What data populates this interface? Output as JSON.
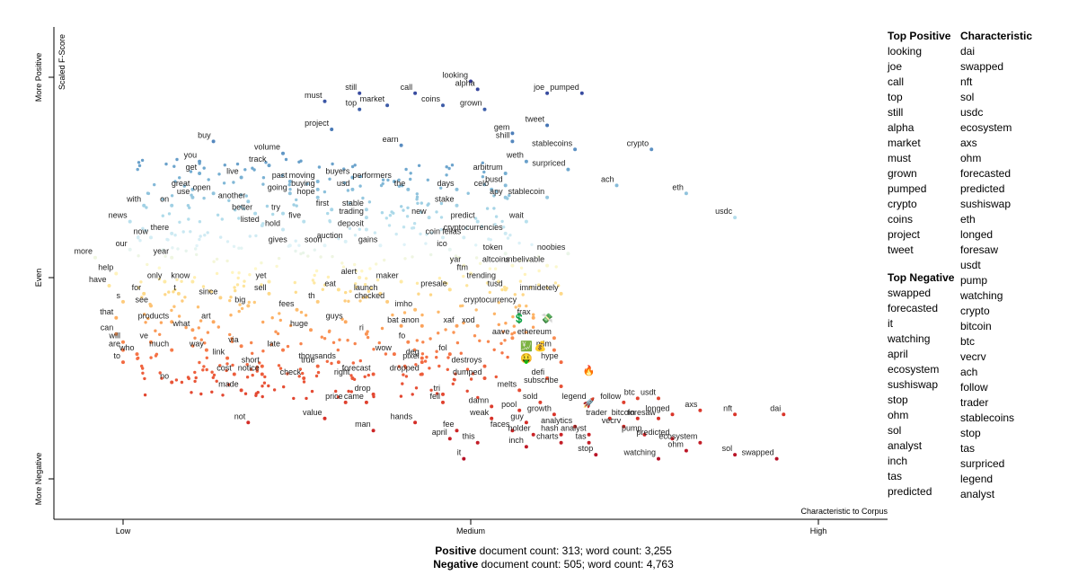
{
  "chart_data": {
    "type": "scatter",
    "x_axis": {
      "label": "Characteristic to Corpus",
      "ticks": [
        "Low",
        "Medium",
        "High"
      ],
      "range": [
        0,
        1
      ]
    },
    "y_axis": {
      "label": "Scaled F-Score",
      "ticks": [
        "More Negative",
        "Even",
        "More Positive"
      ],
      "range": [
        -1,
        1
      ]
    },
    "colors": {
      "positive": "#3a53a4",
      "neutral": "#fdf5c0",
      "negative": "#c2242f"
    },
    "labeled_terms": [
      {
        "term": "looking",
        "x": 0.5,
        "y": 0.99
      },
      {
        "term": "alpha",
        "x": 0.51,
        "y": 0.97
      },
      {
        "term": "call",
        "x": 0.42,
        "y": 0.96
      },
      {
        "term": "still",
        "x": 0.34,
        "y": 0.96
      },
      {
        "term": "must",
        "x": 0.29,
        "y": 0.94
      },
      {
        "term": "market",
        "x": 0.38,
        "y": 0.93
      },
      {
        "term": "coins",
        "x": 0.46,
        "y": 0.93
      },
      {
        "term": "top",
        "x": 0.34,
        "y": 0.92
      },
      {
        "term": "grown",
        "x": 0.52,
        "y": 0.92
      },
      {
        "term": "joe",
        "x": 0.61,
        "y": 0.96
      },
      {
        "term": "pumped",
        "x": 0.66,
        "y": 0.96
      },
      {
        "term": "project",
        "x": 0.3,
        "y": 0.87
      },
      {
        "term": "tweet",
        "x": 0.61,
        "y": 0.88
      },
      {
        "term": "gem",
        "x": 0.56,
        "y": 0.86
      },
      {
        "term": "shill",
        "x": 0.56,
        "y": 0.84
      },
      {
        "term": "crypto",
        "x": 0.76,
        "y": 0.82
      },
      {
        "term": "stablecoins",
        "x": 0.65,
        "y": 0.82
      },
      {
        "term": "earn",
        "x": 0.4,
        "y": 0.83
      },
      {
        "term": "buy",
        "x": 0.13,
        "y": 0.84
      },
      {
        "term": "volume",
        "x": 0.23,
        "y": 0.81
      },
      {
        "term": "track",
        "x": 0.21,
        "y": 0.78
      },
      {
        "term": "weth",
        "x": 0.58,
        "y": 0.79
      },
      {
        "term": "you",
        "x": 0.11,
        "y": 0.79
      },
      {
        "term": "surpriced",
        "x": 0.64,
        "y": 0.77
      },
      {
        "term": "arbitrum",
        "x": 0.55,
        "y": 0.76
      },
      {
        "term": "get",
        "x": 0.11,
        "y": 0.76
      },
      {
        "term": "live",
        "x": 0.17,
        "y": 0.75
      },
      {
        "term": "past",
        "x": 0.24,
        "y": 0.74
      },
      {
        "term": "moving",
        "x": 0.28,
        "y": 0.74
      },
      {
        "term": "buyers",
        "x": 0.33,
        "y": 0.75
      },
      {
        "term": "performers",
        "x": 0.39,
        "y": 0.74
      },
      {
        "term": "busd",
        "x": 0.55,
        "y": 0.73
      },
      {
        "term": "ach",
        "x": 0.71,
        "y": 0.73
      },
      {
        "term": "days",
        "x": 0.48,
        "y": 0.72
      },
      {
        "term": "great",
        "x": 0.1,
        "y": 0.72
      },
      {
        "term": "open",
        "x": 0.13,
        "y": 0.71
      },
      {
        "term": "buying",
        "x": 0.28,
        "y": 0.72
      },
      {
        "term": "usd",
        "x": 0.33,
        "y": 0.72
      },
      {
        "term": "the",
        "x": 0.41,
        "y": 0.72
      },
      {
        "term": "celo",
        "x": 0.53,
        "y": 0.72
      },
      {
        "term": "apy",
        "x": 0.55,
        "y": 0.7
      },
      {
        "term": "eth",
        "x": 0.81,
        "y": 0.71
      },
      {
        "term": "use",
        "x": 0.1,
        "y": 0.7
      },
      {
        "term": "going",
        "x": 0.24,
        "y": 0.71
      },
      {
        "term": "hope",
        "x": 0.28,
        "y": 0.7
      },
      {
        "term": "stablecoin",
        "x": 0.61,
        "y": 0.7
      },
      {
        "term": "another",
        "x": 0.18,
        "y": 0.69
      },
      {
        "term": "stake",
        "x": 0.48,
        "y": 0.68
      },
      {
        "term": "with",
        "x": 0.03,
        "y": 0.68
      },
      {
        "term": "on",
        "x": 0.07,
        "y": 0.68
      },
      {
        "term": "first",
        "x": 0.3,
        "y": 0.67
      },
      {
        "term": "stable",
        "x": 0.35,
        "y": 0.67
      },
      {
        "term": "better",
        "x": 0.19,
        "y": 0.66
      },
      {
        "term": "try",
        "x": 0.23,
        "y": 0.66
      },
      {
        "term": "five",
        "x": 0.26,
        "y": 0.64
      },
      {
        "term": "trading",
        "x": 0.35,
        "y": 0.65
      },
      {
        "term": "new",
        "x": 0.44,
        "y": 0.65
      },
      {
        "term": "predict",
        "x": 0.51,
        "y": 0.64
      },
      {
        "term": "wait",
        "x": 0.58,
        "y": 0.64
      },
      {
        "term": "usdc",
        "x": 0.88,
        "y": 0.65
      },
      {
        "term": "news",
        "x": 0.01,
        "y": 0.64
      },
      {
        "term": "listed",
        "x": 0.2,
        "y": 0.63
      },
      {
        "term": "hold",
        "x": 0.23,
        "y": 0.62
      },
      {
        "term": "deposit",
        "x": 0.35,
        "y": 0.62
      },
      {
        "term": "cryptocurrencies",
        "x": 0.55,
        "y": 0.61
      },
      {
        "term": "now",
        "x": 0.04,
        "y": 0.6
      },
      {
        "term": "there",
        "x": 0.07,
        "y": 0.61
      },
      {
        "term": "coin",
        "x": 0.46,
        "y": 0.6
      },
      {
        "term": "fellas",
        "x": 0.49,
        "y": 0.6
      },
      {
        "term": "auction",
        "x": 0.32,
        "y": 0.59
      },
      {
        "term": "gains",
        "x": 0.37,
        "y": 0.58
      },
      {
        "term": "gives",
        "x": 0.24,
        "y": 0.58
      },
      {
        "term": "soon",
        "x": 0.29,
        "y": 0.58
      },
      {
        "term": "ico",
        "x": 0.47,
        "y": 0.57
      },
      {
        "term": "token",
        "x": 0.55,
        "y": 0.56
      },
      {
        "term": "noobies",
        "x": 0.64,
        "y": 0.56
      },
      {
        "term": "our",
        "x": 0.01,
        "y": 0.57
      },
      {
        "term": "more",
        "x": -0.04,
        "y": 0.55
      },
      {
        "term": "year",
        "x": 0.07,
        "y": 0.55
      },
      {
        "term": "yar",
        "x": 0.49,
        "y": 0.53
      },
      {
        "term": "altcoins",
        "x": 0.56,
        "y": 0.53
      },
      {
        "term": "unbelivable",
        "x": 0.61,
        "y": 0.53
      },
      {
        "term": "help",
        "x": -0.01,
        "y": 0.51
      },
      {
        "term": "ftm",
        "x": 0.5,
        "y": 0.51
      },
      {
        "term": "alert",
        "x": 0.34,
        "y": 0.5
      },
      {
        "term": "maker",
        "x": 0.4,
        "y": 0.49
      },
      {
        "term": "trending",
        "x": 0.54,
        "y": 0.49
      },
      {
        "term": "only",
        "x": 0.06,
        "y": 0.49
      },
      {
        "term": "know",
        "x": 0.1,
        "y": 0.49
      },
      {
        "term": "yet",
        "x": 0.21,
        "y": 0.49
      },
      {
        "term": "have",
        "x": -0.02,
        "y": 0.48
      },
      {
        "term": "eat",
        "x": 0.31,
        "y": 0.47
      },
      {
        "term": "presale",
        "x": 0.47,
        "y": 0.47
      },
      {
        "term": "tusd",
        "x": 0.55,
        "y": 0.47
      },
      {
        "term": "for",
        "x": 0.03,
        "y": 0.46
      },
      {
        "term": "t",
        "x": 0.08,
        "y": 0.46
      },
      {
        "term": "sell",
        "x": 0.21,
        "y": 0.46
      },
      {
        "term": "launch",
        "x": 0.37,
        "y": 0.46
      },
      {
        "term": "immidetely",
        "x": 0.63,
        "y": 0.46
      },
      {
        "term": "since",
        "x": 0.14,
        "y": 0.45
      },
      {
        "term": "s",
        "x": 0.0,
        "y": 0.44
      },
      {
        "term": "checked",
        "x": 0.38,
        "y": 0.44
      },
      {
        "term": "cryptocurrency",
        "x": 0.57,
        "y": 0.43
      },
      {
        "term": "th",
        "x": 0.28,
        "y": 0.44
      },
      {
        "term": "see",
        "x": 0.04,
        "y": 0.43
      },
      {
        "term": "big",
        "x": 0.18,
        "y": 0.43
      },
      {
        "term": "fees",
        "x": 0.25,
        "y": 0.42
      },
      {
        "term": "imho",
        "x": 0.42,
        "y": 0.42
      },
      {
        "term": "that",
        "x": -0.01,
        "y": 0.4
      },
      {
        "term": "frax",
        "x": 0.59,
        "y": 0.4
      },
      {
        "term": "products",
        "x": 0.07,
        "y": 0.39
      },
      {
        "term": "art",
        "x": 0.13,
        "y": 0.39
      },
      {
        "term": "guys",
        "x": 0.32,
        "y": 0.39
      },
      {
        "term": "bat",
        "x": 0.4,
        "y": 0.38
      },
      {
        "term": "anon",
        "x": 0.43,
        "y": 0.38
      },
      {
        "term": "xaf",
        "x": 0.48,
        "y": 0.38
      },
      {
        "term": "xod",
        "x": 0.51,
        "y": 0.38
      },
      {
        "term": "what",
        "x": 0.1,
        "y": 0.37
      },
      {
        "term": "huge",
        "x": 0.27,
        "y": 0.37
      },
      {
        "term": "can",
        "x": -0.01,
        "y": 0.36
      },
      {
        "term": "ri",
        "x": 0.35,
        "y": 0.36
      },
      {
        "term": "ethereum",
        "x": 0.62,
        "y": 0.35
      },
      {
        "term": "aave",
        "x": 0.56,
        "y": 0.35
      },
      {
        "term": "will",
        "x": 0.0,
        "y": 0.34
      },
      {
        "term": "ve",
        "x": 0.04,
        "y": 0.34
      },
      {
        "term": "fo",
        "x": 0.41,
        "y": 0.34
      },
      {
        "term": "via",
        "x": 0.17,
        "y": 0.33
      },
      {
        "term": "late",
        "x": 0.23,
        "y": 0.32
      },
      {
        "term": "mim",
        "x": 0.62,
        "y": 0.32
      },
      {
        "term": "are",
        "x": 0.0,
        "y": 0.32
      },
      {
        "term": "much",
        "x": 0.07,
        "y": 0.32
      },
      {
        "term": "way",
        "x": 0.12,
        "y": 0.32
      },
      {
        "term": "wow",
        "x": 0.39,
        "y": 0.31
      },
      {
        "term": "fol",
        "x": 0.47,
        "y": 0.31
      },
      {
        "term": "who",
        "x": 0.02,
        "y": 0.31
      },
      {
        "term": "deg",
        "x": 0.43,
        "y": 0.3
      },
      {
        "term": "link",
        "x": 0.15,
        "y": 0.3
      },
      {
        "term": "hype",
        "x": 0.63,
        "y": 0.29
      },
      {
        "term": "thousands",
        "x": 0.31,
        "y": 0.29
      },
      {
        "term": "pixel",
        "x": 0.43,
        "y": 0.29
      },
      {
        "term": "to",
        "x": 0.0,
        "y": 0.29
      },
      {
        "term": "true",
        "x": 0.28,
        "y": 0.28
      },
      {
        "term": "short",
        "x": 0.2,
        "y": 0.28
      },
      {
        "term": "destroys",
        "x": 0.52,
        "y": 0.28
      },
      {
        "term": "cost",
        "x": 0.16,
        "y": 0.26
      },
      {
        "term": "notice",
        "x": 0.2,
        "y": 0.26
      },
      {
        "term": "forecast",
        "x": 0.36,
        "y": 0.26
      },
      {
        "term": "dropped",
        "x": 0.43,
        "y": 0.26
      },
      {
        "term": "check",
        "x": 0.26,
        "y": 0.25
      },
      {
        "term": "right",
        "x": 0.33,
        "y": 0.25
      },
      {
        "term": "defi",
        "x": 0.61,
        "y": 0.25
      },
      {
        "term": "dumped",
        "x": 0.52,
        "y": 0.25
      },
      {
        "term": "no",
        "x": 0.07,
        "y": 0.24
      },
      {
        "term": "subscribe",
        "x": 0.63,
        "y": 0.23
      },
      {
        "term": "melts",
        "x": 0.57,
        "y": 0.22
      },
      {
        "term": "made",
        "x": 0.17,
        "y": 0.22
      },
      {
        "term": "drop",
        "x": 0.36,
        "y": 0.21
      },
      {
        "term": "tri",
        "x": 0.46,
        "y": 0.21
      },
      {
        "term": "usdt",
        "x": 0.77,
        "y": 0.2
      },
      {
        "term": "btc",
        "x": 0.74,
        "y": 0.2
      },
      {
        "term": "legend",
        "x": 0.67,
        "y": 0.19
      },
      {
        "term": "follow",
        "x": 0.72,
        "y": 0.19
      },
      {
        "term": "sold",
        "x": 0.6,
        "y": 0.19
      },
      {
        "term": "price",
        "x": 0.32,
        "y": 0.19
      },
      {
        "term": "came",
        "x": 0.35,
        "y": 0.19
      },
      {
        "term": "fell",
        "x": 0.46,
        "y": 0.19
      },
      {
        "term": "damn",
        "x": 0.53,
        "y": 0.18
      },
      {
        "term": "axs",
        "x": 0.83,
        "y": 0.17
      },
      {
        "term": "nft",
        "x": 0.88,
        "y": 0.16
      },
      {
        "term": "dai",
        "x": 0.95,
        "y": 0.16
      },
      {
        "term": "longed",
        "x": 0.79,
        "y": 0.16
      },
      {
        "term": "pool",
        "x": 0.57,
        "y": 0.17
      },
      {
        "term": "growth",
        "x": 0.62,
        "y": 0.16
      },
      {
        "term": "foresaw",
        "x": 0.77,
        "y": 0.15
      },
      {
        "term": "weak",
        "x": 0.53,
        "y": 0.15
      },
      {
        "term": "value",
        "x": 0.29,
        "y": 0.15
      },
      {
        "term": "bitcoin",
        "x": 0.74,
        "y": 0.15
      },
      {
        "term": "trader",
        "x": 0.7,
        "y": 0.15
      },
      {
        "term": "not",
        "x": 0.18,
        "y": 0.14
      },
      {
        "term": "hands",
        "x": 0.42,
        "y": 0.14
      },
      {
        "term": "guy",
        "x": 0.58,
        "y": 0.14
      },
      {
        "term": "analytics",
        "x": 0.65,
        "y": 0.13
      },
      {
        "term": "vecrv",
        "x": 0.72,
        "y": 0.13
      },
      {
        "term": "fee",
        "x": 0.48,
        "y": 0.12
      },
      {
        "term": "faces",
        "x": 0.56,
        "y": 0.12
      },
      {
        "term": "man",
        "x": 0.36,
        "y": 0.12
      },
      {
        "term": "holder",
        "x": 0.59,
        "y": 0.11
      },
      {
        "term": "hash",
        "x": 0.63,
        "y": 0.11
      },
      {
        "term": "analyst",
        "x": 0.67,
        "y": 0.11
      },
      {
        "term": "pump",
        "x": 0.75,
        "y": 0.11
      },
      {
        "term": "april",
        "x": 0.47,
        "y": 0.1
      },
      {
        "term": "predicted",
        "x": 0.79,
        "y": 0.1
      },
      {
        "term": "ecosystem",
        "x": 0.83,
        "y": 0.09
      },
      {
        "term": "this",
        "x": 0.51,
        "y": 0.09
      },
      {
        "term": "charts",
        "x": 0.63,
        "y": 0.09
      },
      {
        "term": "tas",
        "x": 0.67,
        "y": 0.09
      },
      {
        "term": "inch",
        "x": 0.58,
        "y": 0.08
      },
      {
        "term": "ohm",
        "x": 0.81,
        "y": 0.07
      },
      {
        "term": "stop",
        "x": 0.68,
        "y": 0.06
      },
      {
        "term": "sol",
        "x": 0.88,
        "y": 0.06
      },
      {
        "term": "it",
        "x": 0.49,
        "y": 0.05
      },
      {
        "term": "watching",
        "x": 0.77,
        "y": 0.05
      },
      {
        "term": "swapped",
        "x": 0.94,
        "y": 0.05
      }
    ],
    "top_positive_title": "Top Positive",
    "top_positive": [
      "looking",
      "joe",
      "call",
      "top",
      "still",
      "alpha",
      "market",
      "must",
      "grown",
      "pumped",
      "crypto",
      "coins",
      "project",
      "tweet"
    ],
    "top_negative_title": "Top Negative",
    "top_negative": [
      "swapped",
      "forecasted",
      "it",
      "watching",
      "april",
      "ecosystem",
      "sushiswap",
      "stop",
      "ohm",
      "sol",
      "analyst",
      "inch",
      "tas",
      "predicted"
    ],
    "characteristic_title": "Characteristic",
    "characteristic": [
      "dai",
      "swapped",
      "nft",
      "sol",
      "usdc",
      "ecosystem",
      "axs",
      "ohm",
      "forecasted",
      "predicted",
      "sushiswap",
      "eth",
      "longed",
      "foresaw",
      "usdt",
      "pump",
      "watching",
      "crypto",
      "bitcoin",
      "btc",
      "vecrv",
      "ach",
      "follow",
      "trader",
      "stablecoins",
      "stop",
      "tas",
      "surpriced",
      "legend",
      "analyst"
    ],
    "footer": {
      "positive_label": "Positive",
      "positive_text": " document count: 313; word count: 3,255",
      "negative_label": "Negative",
      "negative_text": " document count: 505; word count: 4,763"
    }
  }
}
